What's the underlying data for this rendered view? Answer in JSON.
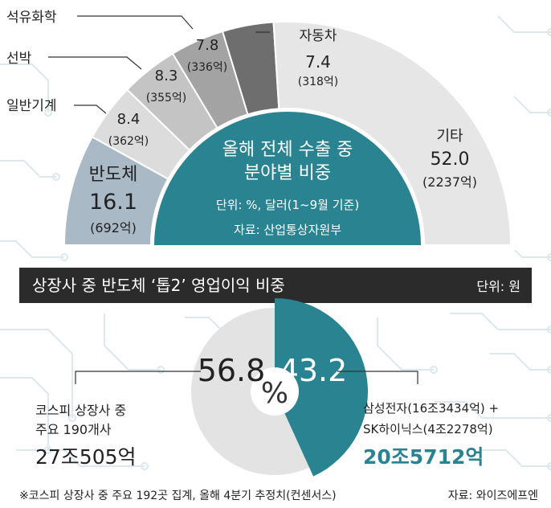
{
  "chart_data": [
    {
      "type": "pie",
      "shape": "half-donut",
      "title": "올해 전체 수출 중",
      "title2": "분야별 비중",
      "unit_note": "단위: %, 달러(1~9월 기준)",
      "source": "자료: 산업통상자원부",
      "slices": [
        {
          "label": "반도체",
          "value": 16.1,
          "amount": "(692억)",
          "color": "#a9b9c6"
        },
        {
          "label": "일반기계",
          "value": 8.4,
          "amount": "(362억)",
          "color": "#dcdcdc"
        },
        {
          "label": "선박",
          "value": 8.3,
          "amount": "(355억)",
          "color": "#c4c4c4"
        },
        {
          "label": "석유화학",
          "value": 7.8,
          "amount": "(336억)",
          "color": "#a3a3a3"
        },
        {
          "label": "",
          "value": 7.4,
          "amount": "",
          "color": "#6e6e6e"
        },
        {
          "label": "기타",
          "value": 52.0,
          "amount": "(2237억)",
          "color": "#e6e6e6"
        }
      ],
      "callouts": [
        {
          "label": "자동차",
          "value": "7.4",
          "amount": "(318억)"
        }
      ]
    },
    {
      "type": "pie",
      "title": "상장사 중 반도체 ‘톱2’ 영업이익 비중",
      "unit": "단위: 원",
      "center_label": "%",
      "slices": [
        {
          "value": 56.8,
          "label_lines": [
            "코스피 상장사 중",
            "주요 190개사"
          ],
          "amount": "27조505억",
          "color": "#e3e3e3"
        },
        {
          "value": 43.2,
          "label_lines": [
            "삼성전자(16조3434억) +",
            "SK하이닉스(4조2278억)"
          ],
          "amount": "20조5712억",
          "color": "#2a8390"
        }
      ]
    }
  ],
  "footnote": "※코스피 상장사 중 주요 192곳 집계, 올해 4분기 추정치(컨센서스)",
  "source2": "자료: 와이즈에프엔"
}
